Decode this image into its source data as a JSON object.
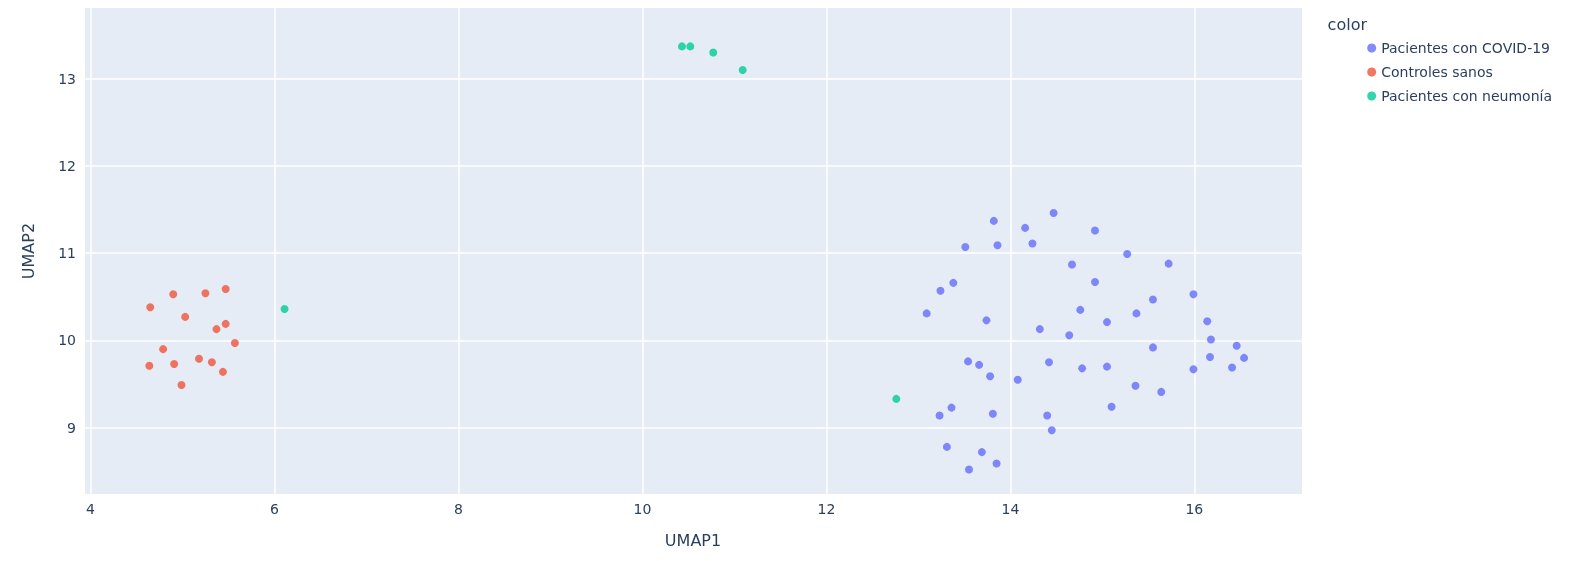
{
  "chart_data": {
    "type": "scatter",
    "xlabel": "UMAP1",
    "ylabel": "UMAP2",
    "legend_title": "color",
    "legend": "top right",
    "grid": true,
    "marker": "circle",
    "xlim": [
      3.93,
      17.17
    ],
    "xticks": [
      4,
      6,
      8,
      10,
      12,
      14,
      16
    ],
    "ylim": [
      8.24,
      13.81
    ],
    "yticks": [
      9,
      10,
      11,
      12,
      13
    ],
    "series": [
      {
        "name": "Pacientes con COVID-19",
        "color": "#636efa",
        "x": [
          13.82,
          14.16,
          14.47,
          14.92,
          13.51,
          13.86,
          14.24,
          15.27,
          14.67,
          15.72,
          13.38,
          13.24,
          14.92,
          15.99,
          15.55,
          13.09,
          13.74,
          14.76,
          15.37,
          15.05,
          14.32,
          14.64,
          16.14,
          16.18,
          16.46,
          16.54,
          16.17,
          16.41,
          15.99,
          15.55,
          13.54,
          13.66,
          13.78,
          14.08,
          14.42,
          14.78,
          15.05,
          15.36,
          15.64,
          15.1,
          13.36,
          13.23,
          13.81,
          14.4,
          14.45,
          13.31,
          13.69,
          13.85,
          13.55
        ],
        "values": [
          11.37,
          11.29,
          11.46,
          11.26,
          11.07,
          11.09,
          11.11,
          10.99,
          10.87,
          10.88,
          10.66,
          10.57,
          10.67,
          10.53,
          10.47,
          10.31,
          10.23,
          10.35,
          10.31,
          10.21,
          10.13,
          10.06,
          10.22,
          10.01,
          9.94,
          9.8,
          9.81,
          9.69,
          9.67,
          9.92,
          9.76,
          9.72,
          9.59,
          9.55,
          9.75,
          9.68,
          9.7,
          9.48,
          9.41,
          9.24,
          9.23,
          9.14,
          9.16,
          9.14,
          8.97,
          8.78,
          8.72,
          8.59,
          8.52
        ]
      },
      {
        "name": "Controles sanos",
        "color": "#ef553b",
        "x": [
          4.65,
          4.9,
          5.25,
          5.47,
          5.03,
          5.47,
          5.37,
          5.57,
          4.79,
          4.64,
          4.91,
          5.18,
          5.32,
          5.44,
          4.99
        ],
        "values": [
          10.38,
          10.53,
          10.54,
          10.59,
          10.27,
          10.19,
          10.13,
          9.97,
          9.9,
          9.71,
          9.73,
          9.79,
          9.75,
          9.64,
          9.49
        ]
      },
      {
        "name": "Pacientes con neumonía",
        "color": "#00cc96",
        "x": [
          6.11,
          12.76,
          10.43,
          10.52,
          10.77,
          11.09
        ],
        "values": [
          10.36,
          9.33,
          13.37,
          13.37,
          13.3,
          13.1
        ]
      }
    ]
  }
}
